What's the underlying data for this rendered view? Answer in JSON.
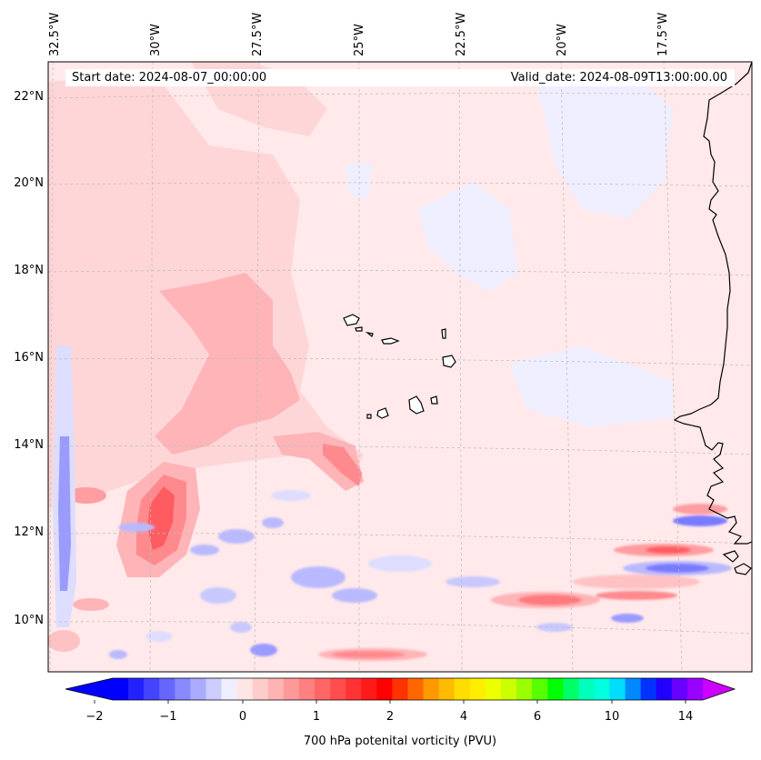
{
  "map": {
    "start_date": "Start date: 2024-08-07_00:00:00",
    "valid_date": "Valid_date: 2024-08-09T13:00:00.00",
    "longitude_labels": [
      "32.5°W",
      "30°W",
      "27.5°W",
      "25°W",
      "22.5°W",
      "20°W",
      "17.5°W"
    ],
    "latitude_labels": [
      "22°N",
      "20°N",
      "18°N",
      "16°N",
      "14°N",
      "12°N",
      "10°N"
    ],
    "colorbar": {
      "label": "700 hPa potenital vorticity (PVU)",
      "tick_labels": [
        "−2",
        "−1",
        "0",
        "1",
        "2",
        "4",
        "6",
        "10",
        "14"
      ],
      "colors": [
        "#0000ff",
        "#2222ff",
        "#4444ff",
        "#6666ff",
        "#8888ff",
        "#aaaaff",
        "#ccccff",
        "#eeeeff",
        "#ffe6e6",
        "#ffcccc",
        "#ffb3b3",
        "#ff9999",
        "#ff8080",
        "#ff6666",
        "#ff4d4d",
        "#ff3333",
        "#ff1a1a",
        "#ff0000",
        "#ff3300",
        "#ff6600",
        "#ff9900",
        "#ffbb00",
        "#ffdd00",
        "#ffee00",
        "#eeff00",
        "#ccff00",
        "#99ff00",
        "#55ff00",
        "#00ff00",
        "#00ff66",
        "#00ffbb",
        "#00ffdd",
        "#00ddff",
        "#0088ff",
        "#0033ff",
        "#2200ff",
        "#6600ff",
        "#9900ff"
      ],
      "extend_low_color": "#0000ff",
      "extend_high_color": "#cc00ff"
    },
    "colors": {
      "background_field": "#ffe9ea",
      "light_pink": "#ffcfd1",
      "pink": "#ffb0b3",
      "red_strong": "#ff7a7e",
      "red_core": "#ff4d52",
      "light_blue": "#ececff",
      "blue": "#b9b9ff",
      "blue_strong": "#7a7aff",
      "coast": "#000000"
    }
  }
}
